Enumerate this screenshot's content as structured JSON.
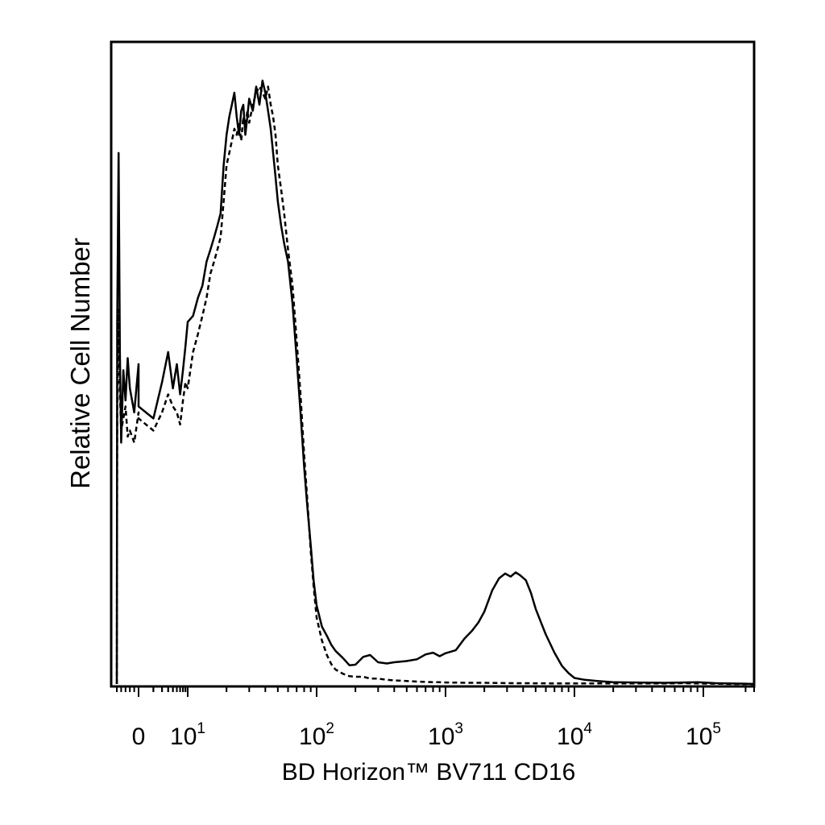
{
  "chart_data": {
    "type": "line",
    "title": "",
    "xlabel": "BD Horizon™ BV711 CD16",
    "ylabel": "Relative Cell Number",
    "x_scale": "log (biexponential)",
    "xlim": [
      -5,
      250000
    ],
    "ylim": [
      0,
      100
    ],
    "grid": false,
    "legend": "none",
    "x_tick_labels": [
      {
        "value": 0,
        "base": "0",
        "exp": ""
      },
      {
        "value": 10,
        "base": "10",
        "exp": "1"
      },
      {
        "value": 100,
        "base": "10",
        "exp": "2"
      },
      {
        "value": 1000,
        "base": "10",
        "exp": "3"
      },
      {
        "value": 10000,
        "base": "10",
        "exp": "4"
      },
      {
        "value": 100000,
        "base": "10",
        "exp": "5"
      }
    ],
    "series": [
      {
        "style": "solid",
        "color": "#000000",
        "x": [
          -5,
          -4.9,
          -4.6,
          -4.3,
          -4,
          -3.5,
          -3,
          -2.5,
          -2,
          -1,
          0,
          1,
          2,
          3,
          4,
          5,
          6,
          7,
          8,
          9,
          10,
          11,
          12,
          13,
          14,
          15,
          16,
          17,
          18,
          19,
          20,
          21,
          22,
          23,
          24,
          25,
          26,
          27,
          28,
          29,
          30,
          32,
          34,
          36,
          38,
          40,
          42,
          44,
          46,
          48,
          50,
          53,
          56,
          60,
          65,
          70,
          75,
          80,
          85,
          90,
          95,
          100,
          110,
          120,
          130,
          140,
          160,
          180,
          200,
          230,
          260,
          300,
          350,
          400,
          500,
          600,
          700,
          800,
          900,
          1000,
          1200,
          1400,
          1600,
          1800,
          2000,
          2300,
          2600,
          2900,
          3200,
          3500,
          3800,
          4200,
          4600,
          5000,
          5500,
          6000,
          7000,
          8000,
          9000,
          10000,
          12000,
          15000,
          20000,
          30000,
          50000,
          70000,
          90000,
          120000,
          150000,
          200000,
          230000
        ],
        "y": [
          0,
          60,
          88,
          55,
          40,
          52,
          47,
          54,
          49,
          45,
          53,
          46,
          44,
          50,
          55,
          49,
          53,
          48,
          52,
          56,
          60,
          61,
          64,
          66,
          70,
          72,
          74,
          76,
          78,
          86,
          91,
          94,
          96,
          98,
          94,
          91,
          95,
          96,
          91,
          94,
          97,
          95,
          99,
          96,
          100,
          98,
          95,
          92,
          88,
          84,
          80,
          76,
          73,
          70,
          63,
          54,
          45,
          36,
          29,
          23,
          17,
          13,
          9.5,
          8,
          6.5,
          5.5,
          4.3,
          3.1,
          3.2,
          4.5,
          4.8,
          3.6,
          3.4,
          3.6,
          3.8,
          4.1,
          4.9,
          5.2,
          4.6,
          5.1,
          5.6,
          7.5,
          8.8,
          10.2,
          12.0,
          15.5,
          17.5,
          18.3,
          17.8,
          18.5,
          18.0,
          17.2,
          15.1,
          12.5,
          10.2,
          8.2,
          5.2,
          3.0,
          1.8,
          1.0,
          0.7,
          0.5,
          0.3,
          0.25,
          0.2,
          0.25,
          0.3,
          0.15,
          0.1,
          0.05,
          0.0
        ]
      },
      {
        "style": "dashed",
        "color": "#000000",
        "x": [
          -5,
          -4.9,
          -4.6,
          -4.3,
          -4,
          -3.5,
          -3,
          -2.5,
          -2,
          -1,
          0,
          1,
          2,
          3,
          4,
          5,
          6,
          7,
          8,
          9,
          10,
          11,
          12,
          13,
          14,
          15,
          16,
          17,
          18,
          19,
          20,
          21,
          22,
          23,
          24,
          25,
          26,
          27,
          28,
          29,
          30,
          32,
          34,
          36,
          38,
          40,
          42,
          44,
          46,
          48,
          50,
          53,
          56,
          60,
          65,
          70,
          75,
          80,
          85,
          90,
          95,
          100,
          110,
          120,
          130,
          140,
          160,
          180,
          200,
          230,
          260,
          300,
          350,
          400,
          500,
          600,
          700,
          800,
          900,
          1000,
          1500,
          2000,
          3000,
          5000,
          8000,
          12000,
          20000,
          30000,
          50000,
          70000,
          90000,
          120000,
          160000,
          230000
        ],
        "y": [
          0,
          45,
          62,
          48,
          42,
          44,
          46,
          41,
          42,
          40,
          45,
          44,
          42,
          45,
          48,
          46,
          45,
          43,
          47,
          50,
          49,
          55,
          58,
          61,
          64,
          68,
          70,
          72,
          74,
          80,
          86,
          88,
          90,
          92,
          91,
          93,
          90,
          94,
          92,
          95,
          93,
          96,
          98,
          99,
          98,
          97,
          99,
          96,
          94,
          91,
          86,
          82,
          78,
          72,
          66,
          57,
          48,
          38,
          30,
          22,
          16,
          11,
          7.2,
          4.8,
          3.3,
          2.4,
          1.7,
          1.3,
          1.2,
          1.2,
          0.9,
          0.9,
          0.7,
          0.6,
          0.5,
          0.4,
          0.35,
          0.3,
          0.3,
          0.25,
          0.2,
          0.2,
          0.15,
          0.12,
          0.1,
          0.1,
          0.1,
          0.1,
          0.1,
          0.15,
          0.1,
          0.05,
          0.0,
          0.0
        ]
      }
    ]
  }
}
